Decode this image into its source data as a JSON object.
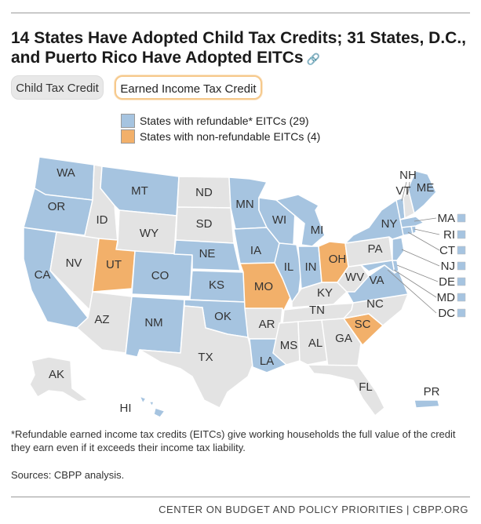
{
  "title": "14 States Have Adopted Child Tax Credits; 31 States, D.C., and Puerto Rico Have Adopted EITCs",
  "link_icon": "link-icon",
  "tabs": [
    {
      "label": "Child Tax Credit",
      "active": false
    },
    {
      "label": "Earned Income Tax Credit",
      "active": true
    }
  ],
  "legend": [
    {
      "label": "States with refundable* EITCs (29)",
      "color": "#a6c4e0"
    },
    {
      "label": "States with non-refundable EITCs (4)",
      "color": "#f2b06a"
    }
  ],
  "colors": {
    "refundable": "#a6c4e0",
    "nonrefundable": "#f2b06a",
    "none": "#e3e3e3",
    "border": "#ffffff"
  },
  "states": {
    "WA": "refundable",
    "OR": "refundable",
    "CA": "refundable",
    "ID": "none",
    "NV": "none",
    "MT": "refundable",
    "WY": "none",
    "UT": "nonrefundable",
    "AZ": "none",
    "CO": "refundable",
    "NM": "refundable",
    "ND": "none",
    "SD": "none",
    "NE": "refundable",
    "KS": "refundable",
    "OK": "refundable",
    "TX": "none",
    "MN": "refundable",
    "IA": "refundable",
    "MO": "nonrefundable",
    "AR": "none",
    "LA": "refundable",
    "WI": "refundable",
    "IL": "refundable",
    "MI": "refundable",
    "IN": "refundable",
    "OH": "nonrefundable",
    "KY": "none",
    "TN": "none",
    "MS": "none",
    "AL": "none",
    "GA": "none",
    "FL": "none",
    "SC": "nonrefundable",
    "NC": "none",
    "VA": "refundable",
    "WV": "none",
    "PA": "none",
    "NY": "refundable",
    "VT": "refundable",
    "NH": "none",
    "ME": "refundable",
    "MA": "refundable",
    "RI": "refundable",
    "CT": "refundable",
    "NJ": "refundable",
    "DE": "refundable",
    "MD": "refundable",
    "DC": "refundable",
    "AK": "none",
    "HI": "refundable",
    "PR": "refundable"
  },
  "small_state_labels": [
    "MA",
    "RI",
    "CT",
    "NJ",
    "DE",
    "MD",
    "DC"
  ],
  "footnote": "*Refundable earned income tax credits (EITCs) give working households the full value of the credit they earn even if it exceeds their income tax liability.",
  "sources": "Sources: CBPP analysis.",
  "footer": "CENTER ON BUDGET AND POLICY PRIORITIES | CBPP.ORG"
}
